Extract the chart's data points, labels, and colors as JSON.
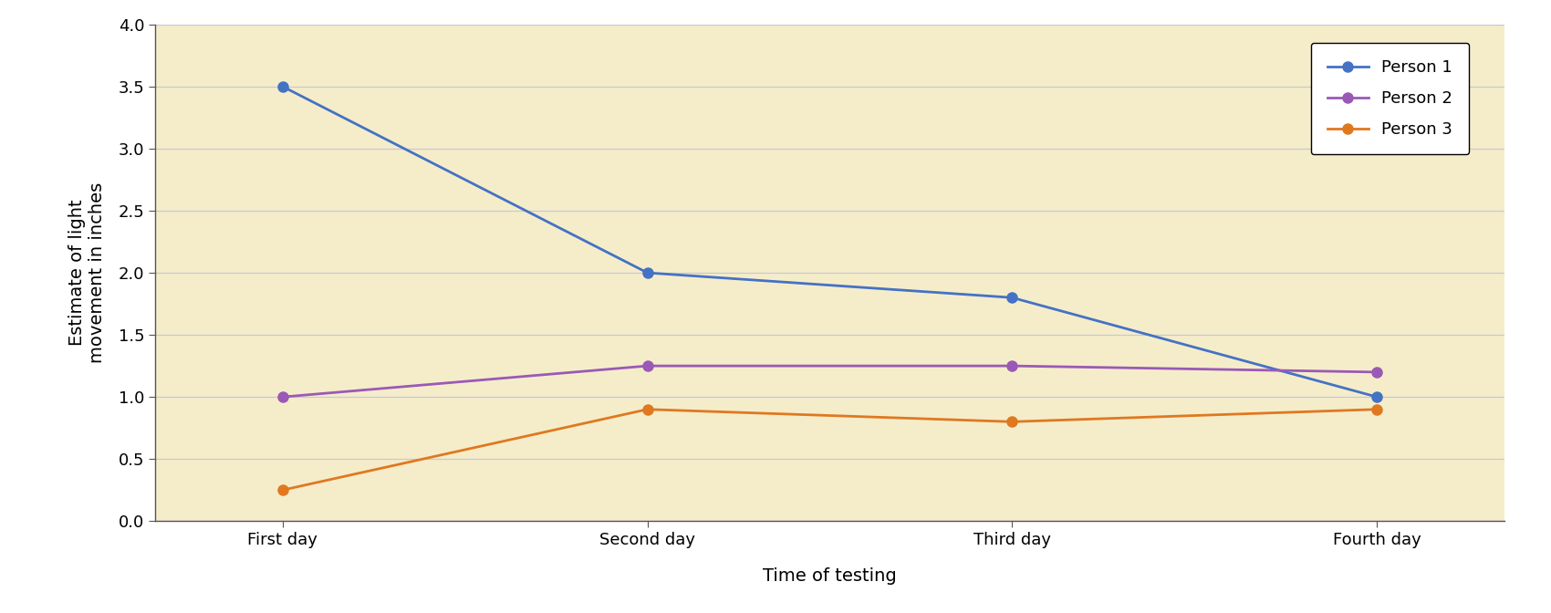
{
  "days": [
    "First day",
    "Second day",
    "Third day",
    "Fourth day"
  ],
  "person1": [
    3.5,
    2.0,
    1.8,
    1.0
  ],
  "person2": [
    1.0,
    1.25,
    1.25,
    1.2
  ],
  "person3": [
    0.25,
    0.9,
    0.8,
    0.9
  ],
  "person1_color": "#4472c4",
  "person2_color": "#9b59b6",
  "person3_color": "#e07820",
  "background_color": "#f5edca",
  "fig_color": "#ffffff",
  "grid_color": "#c8c8d4",
  "spine_color": "#555555",
  "ylabel": "Estimate of light\nmovement in inches",
  "xlabel": "Time of testing",
  "ylim": [
    0.0,
    4.0
  ],
  "yticks": [
    0.0,
    0.5,
    1.0,
    1.5,
    2.0,
    2.5,
    3.0,
    3.5,
    4.0
  ],
  "legend_labels": [
    "Person 1",
    "Person 2",
    "Person 3"
  ],
  "label_fontsize": 14,
  "tick_fontsize": 13,
  "legend_fontsize": 13,
  "linewidth": 2.0,
  "markersize": 8
}
